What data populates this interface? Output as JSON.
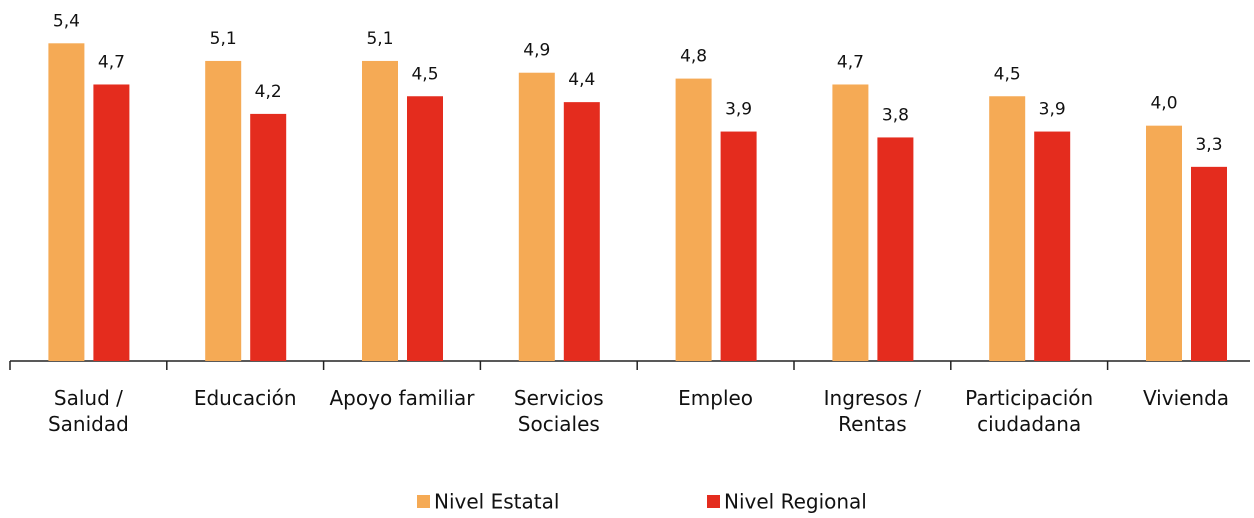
{
  "chart_data": {
    "type": "bar",
    "categories": [
      "Salud / Sanidad",
      "Educación",
      "Apoyo familiar",
      "Servicios Sociales",
      "Empleo",
      "Ingresos / Rentas",
      "Participación ciudadana",
      "Vivienda"
    ],
    "series": [
      {
        "name": "Nivel Estatal",
        "color": "#f5aa55",
        "values": [
          5.4,
          5.1,
          5.1,
          4.9,
          4.8,
          4.7,
          4.5,
          4.0
        ],
        "value_labels": [
          "5,4",
          "5,1",
          "5,1",
          "4,9",
          "4,8",
          "4,7",
          "4,5",
          "4,0"
        ]
      },
      {
        "name": "Nivel Regional",
        "color": "#e42c1e",
        "values": [
          4.7,
          4.2,
          4.5,
          4.4,
          3.9,
          3.8,
          3.9,
          3.3
        ],
        "value_labels": [
          "4,7",
          "4,2",
          "4,5",
          "4,4",
          "3,9",
          "3,8",
          "3,9",
          "3,3"
        ]
      }
    ],
    "ylim": [
      0,
      6
    ],
    "legend": "bottom"
  }
}
